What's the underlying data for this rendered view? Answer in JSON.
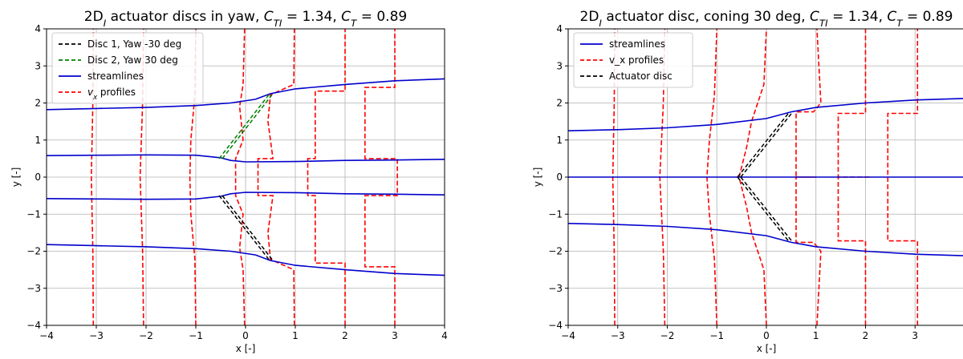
{
  "chart_data": [
    {
      "type": "line",
      "title_parts": [
        {
          "t": "2D",
          "sub": false
        },
        {
          "t": "I",
          "sub": true,
          "italic": true
        },
        {
          "t": " actuator discs in yaw, ",
          "sub": false
        },
        {
          "t": "C",
          "italic": true,
          "sub": false
        },
        {
          "t": "TI",
          "sub": true,
          "italic": true
        },
        {
          "t": " = 1.34, ",
          "sub": false
        },
        {
          "t": "C",
          "italic": true,
          "sub": false
        },
        {
          "t": "T",
          "sub": true,
          "italic": true
        },
        {
          "t": " = 0.89",
          "sub": false
        }
      ],
      "xlabel": "x [-]",
      "ylabel": "y [-]",
      "xlim": [
        -4,
        4
      ],
      "ylim": [
        -4,
        4
      ],
      "xticks": [
        -4,
        -3,
        -2,
        -1,
        0,
        1,
        2,
        3,
        4
      ],
      "yticks": [
        -4,
        -3,
        -2,
        -1,
        0,
        1,
        2,
        3,
        4
      ],
      "grid": true,
      "legend_position": "top-left",
      "legend": [
        {
          "label": "Disc 1, Yaw -30 deg",
          "color": "#000000",
          "dash": true
        },
        {
          "label": "Disc 2, Yaw 30 deg",
          "color": "#008000",
          "dash": true
        },
        {
          "label": "streamlines",
          "color": "#0000cc",
          "dash": false
        },
        {
          "label_parts": [
            {
              "t": "v",
              "italic": true,
              "sub": false
            },
            {
              "t": "x",
              "sub": true,
              "italic": true
            },
            {
              "t": " profiles",
              "sub": false
            }
          ],
          "color": "#ff0000",
          "dash": true
        }
      ],
      "streamlines": [
        {
          "points": [
            [
              -4,
              1.82
            ],
            [
              -3,
              1.85
            ],
            [
              -2,
              1.88
            ],
            [
              -1,
              1.93
            ],
            [
              -0.3,
              2.0
            ],
            [
              0.2,
              2.1
            ],
            [
              0.5,
              2.25
            ],
            [
              1,
              2.38
            ],
            [
              2,
              2.5
            ],
            [
              3,
              2.6
            ],
            [
              4,
              2.65
            ]
          ]
        },
        {
          "points": [
            [
              -4,
              0.58
            ],
            [
              -3,
              0.59
            ],
            [
              -2,
              0.6
            ],
            [
              -1,
              0.59
            ],
            [
              -0.5,
              0.52
            ],
            [
              -0.3,
              0.45
            ],
            [
              0,
              0.41
            ],
            [
              1,
              0.42
            ],
            [
              2,
              0.45
            ],
            [
              3,
              0.46
            ],
            [
              4,
              0.48
            ]
          ]
        },
        {
          "points": [
            [
              -4,
              -0.58
            ],
            [
              -3,
              -0.59
            ],
            [
              -2,
              -0.6
            ],
            [
              -1,
              -0.59
            ],
            [
              -0.5,
              -0.52
            ],
            [
              -0.3,
              -0.45
            ],
            [
              0,
              -0.41
            ],
            [
              1,
              -0.42
            ],
            [
              2,
              -0.45
            ],
            [
              3,
              -0.46
            ],
            [
              4,
              -0.48
            ]
          ]
        },
        {
          "points": [
            [
              -4,
              -1.82
            ],
            [
              -3,
              -1.85
            ],
            [
              -2,
              -1.88
            ],
            [
              -1,
              -1.93
            ],
            [
              -0.3,
              -2.0
            ],
            [
              0.2,
              -2.1
            ],
            [
              0.5,
              -2.25
            ],
            [
              1,
              -2.38
            ],
            [
              2,
              -2.5
            ],
            [
              3,
              -2.6
            ],
            [
              4,
              -2.65
            ]
          ]
        }
      ],
      "discs": [
        {
          "name": "Disc 1, Yaw -30 deg",
          "color": "#000000",
          "from": [
            -0.5,
            -0.5
          ],
          "to": [
            0.5,
            -2.22
          ]
        },
        {
          "name": "Disc 2, Yaw 30 deg",
          "color": "#008000",
          "from": [
            -0.5,
            0.5
          ],
          "to": [
            0.5,
            2.22
          ]
        }
      ],
      "profiles": [
        {
          "x0": -3,
          "points": [
            [
              -3.06,
              -4
            ],
            [
              -3.07,
              -2.0
            ],
            [
              -3.1,
              0
            ],
            [
              -3.07,
              2.0
            ],
            [
              -3.06,
              4
            ]
          ]
        },
        {
          "x0": -2,
          "points": [
            [
              -2.05,
              -4
            ],
            [
              -2.07,
              -2.0
            ],
            [
              -2.12,
              0
            ],
            [
              -2.07,
              2.0
            ],
            [
              -2.05,
              4
            ]
          ]
        },
        {
          "x0": -1,
          "points": [
            [
              -1.0,
              -4
            ],
            [
              -1.02,
              -2.2
            ],
            [
              -1.1,
              -1.0
            ],
            [
              -1.12,
              0
            ],
            [
              -1.1,
              1.0
            ],
            [
              -1.02,
              2.2
            ],
            [
              -1.0,
              4
            ]
          ]
        },
        {
          "x0": 0,
          "points": [
            [
              -0.02,
              -4
            ],
            [
              -0.05,
              -2.5
            ],
            [
              -0.12,
              -1.9
            ],
            [
              -0.05,
              -1.0
            ],
            [
              -0.2,
              -0.5
            ],
            [
              -0.2,
              0.5
            ],
            [
              -0.05,
              1.0
            ],
            [
              -0.12,
              1.9
            ],
            [
              -0.05,
              2.5
            ],
            [
              -0.02,
              4
            ]
          ]
        },
        {
          "x0": 1,
          "points": [
            [
              0.98,
              -4
            ],
            [
              0.97,
              -2.5
            ],
            [
              0.5,
              -2.22
            ],
            [
              0.45,
              -1.5
            ],
            [
              0.55,
              -0.5
            ],
            [
              0.25,
              -0.5
            ],
            [
              0.25,
              0.5
            ],
            [
              0.55,
              0.5
            ],
            [
              0.45,
              1.5
            ],
            [
              0.5,
              2.22
            ],
            [
              0.97,
              2.5
            ],
            [
              0.98,
              4
            ]
          ]
        },
        {
          "x0": 2,
          "points": [
            [
              2.0,
              -4
            ],
            [
              2.0,
              -2.32
            ],
            [
              1.4,
              -2.32
            ],
            [
              1.4,
              -0.5
            ],
            [
              1.25,
              -0.5
            ],
            [
              1.25,
              0.5
            ],
            [
              1.4,
              0.5
            ],
            [
              1.4,
              2.32
            ],
            [
              2.0,
              2.32
            ],
            [
              2.0,
              4
            ]
          ]
        },
        {
          "x0": 3,
          "points": [
            [
              3.0,
              -4
            ],
            [
              3.0,
              -2.42
            ],
            [
              2.4,
              -2.42
            ],
            [
              2.4,
              -0.5
            ],
            [
              3.05,
              -0.5
            ],
            [
              3.05,
              0.5
            ],
            [
              2.4,
              0.5
            ],
            [
              2.4,
              2.42
            ],
            [
              3.0,
              2.42
            ],
            [
              3.0,
              4
            ]
          ]
        }
      ]
    },
    {
      "type": "line",
      "title_parts": [
        {
          "t": "2D",
          "sub": false
        },
        {
          "t": "I",
          "sub": true,
          "italic": true
        },
        {
          "t": " actuator disc, coning 30 deg, ",
          "sub": false
        },
        {
          "t": "C",
          "italic": true,
          "sub": false
        },
        {
          "t": "TI",
          "sub": true,
          "italic": true
        },
        {
          "t": " = 1.34, ",
          "sub": false
        },
        {
          "t": "C",
          "italic": true,
          "sub": false
        },
        {
          "t": "T",
          "sub": true,
          "italic": true
        },
        {
          "t": " = 0.89",
          "sub": false
        }
      ],
      "xlabel": "x [-]",
      "ylabel": "y [-]",
      "xlim": [
        -4,
        4
      ],
      "ylim": [
        -4,
        4
      ],
      "xticks": [
        -4,
        -3,
        -2,
        -1,
        0,
        1,
        2,
        3
      ],
      "yticks": [
        -4,
        -3,
        -2,
        -1,
        0,
        1,
        2,
        3,
        4
      ],
      "grid": true,
      "legend_position": "top-left",
      "legend": [
        {
          "label": "streamlines",
          "color": "#0000cc",
          "dash": false
        },
        {
          "label": "v_x profiles",
          "color": "#ff0000",
          "dash": true
        },
        {
          "label": "Actuator disc",
          "color": "#000000",
          "dash": true
        }
      ],
      "streamlines": [
        {
          "points": [
            [
              -4,
              1.25
            ],
            [
              -3,
              1.28
            ],
            [
              -2,
              1.33
            ],
            [
              -1,
              1.42
            ],
            [
              0,
              1.58
            ],
            [
              0.5,
              1.76
            ],
            [
              1,
              1.88
            ],
            [
              2,
              2.0
            ],
            [
              3,
              2.08
            ],
            [
              4,
              2.12
            ]
          ]
        },
        {
          "points": [
            [
              -4,
              0.0
            ],
            [
              4,
              0.0
            ]
          ]
        },
        {
          "points": [
            [
              -4,
              -1.25
            ],
            [
              -3,
              -1.28
            ],
            [
              -2,
              -1.33
            ],
            [
              -1,
              -1.42
            ],
            [
              0,
              -1.58
            ],
            [
              0.5,
              -1.76
            ],
            [
              1,
              -1.88
            ],
            [
              2,
              -2.0
            ],
            [
              3,
              -2.08
            ],
            [
              4,
              -2.12
            ]
          ]
        }
      ],
      "discs": [
        {
          "name": "Actuator disc upper",
          "color": "#000000",
          "from": [
            -0.55,
            0.0
          ],
          "to": [
            0.5,
            1.76
          ]
        },
        {
          "name": "Actuator disc lower",
          "color": "#000000",
          "from": [
            -0.55,
            0.0
          ],
          "to": [
            0.5,
            -1.76
          ]
        }
      ],
      "profiles": [
        {
          "x0": -3,
          "points": [
            [
              -3.06,
              -4
            ],
            [
              -3.07,
              -2.0
            ],
            [
              -3.1,
              0
            ],
            [
              -3.07,
              2.0
            ],
            [
              -3.06,
              4
            ]
          ]
        },
        {
          "x0": -2,
          "points": [
            [
              -2.05,
              -4
            ],
            [
              -2.08,
              -2.0
            ],
            [
              -2.15,
              0
            ],
            [
              -2.08,
              2.0
            ],
            [
              -2.05,
              4
            ]
          ]
        },
        {
          "x0": -1,
          "points": [
            [
              -1.0,
              -4
            ],
            [
              -1.05,
              -2.2
            ],
            [
              -1.15,
              -1.0
            ],
            [
              -1.2,
              0
            ],
            [
              -1.15,
              1.0
            ],
            [
              -1.05,
              2.2
            ],
            [
              -1.0,
              4
            ]
          ]
        },
        {
          "x0": 0,
          "points": [
            [
              0.0,
              -4
            ],
            [
              -0.05,
              -2.5
            ],
            [
              -0.3,
              -1.5
            ],
            [
              -0.4,
              -0.8
            ],
            [
              -0.55,
              0.0
            ],
            [
              -0.4,
              0.8
            ],
            [
              -0.3,
              1.5
            ],
            [
              -0.05,
              2.5
            ],
            [
              0.0,
              4
            ]
          ]
        },
        {
          "x0": 1,
          "points": [
            [
              1.02,
              -4
            ],
            [
              1.1,
              -2.0
            ],
            [
              0.95,
              -1.76
            ],
            [
              0.6,
              -1.76
            ],
            [
              0.6,
              0.0
            ],
            [
              1.0,
              0.0
            ],
            [
              0.6,
              0.0
            ],
            [
              0.6,
              1.76
            ],
            [
              0.95,
              1.76
            ],
            [
              1.1,
              2.0
            ],
            [
              1.02,
              4
            ]
          ]
        },
        {
          "x0": 2,
          "points": [
            [
              2.0,
              -4
            ],
            [
              2.0,
              -1.72
            ],
            [
              1.45,
              -1.72
            ],
            [
              1.45,
              0.0
            ],
            [
              2.1,
              0.0
            ],
            [
              1.45,
              0.0
            ],
            [
              1.45,
              1.72
            ],
            [
              2.0,
              1.72
            ],
            [
              2.0,
              4
            ]
          ]
        },
        {
          "x0": 3,
          "points": [
            [
              3.05,
              -4
            ],
            [
              3.05,
              -1.72
            ],
            [
              2.45,
              -1.72
            ],
            [
              2.45,
              0.0
            ],
            [
              2.45,
              1.72
            ],
            [
              3.05,
              1.72
            ],
            [
              3.05,
              4
            ]
          ]
        }
      ]
    }
  ]
}
